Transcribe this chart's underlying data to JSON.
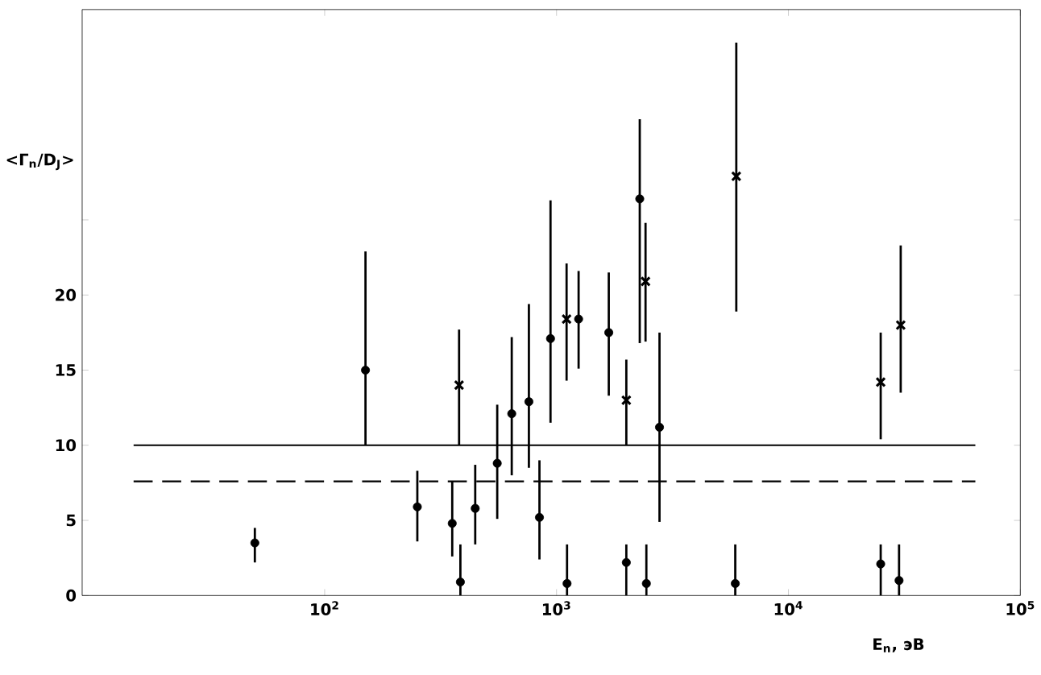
{
  "chart_data": {
    "type": "scatter",
    "xlabel": "E$_{n}$, эВ",
    "ylabel": "<Γ$_{n}$/D$_{J}$>",
    "log": "x",
    "xlim": [
      9,
      100000
    ],
    "ylim": [
      0,
      39
    ],
    "xticks": [
      {
        "value": 100,
        "label": "10$^{2}$"
      },
      {
        "value": 1000,
        "label": "10$^{3}$"
      },
      {
        "value": 10000,
        "label": "10$^{4}$"
      },
      {
        "value": 100000,
        "label": "10$^{5}$"
      }
    ],
    "yticks": [
      0,
      5,
      10,
      15,
      20,
      {
        "value": 25,
        "label": null
      }
    ],
    "grid": false,
    "series": [
      {
        "marker": "circle",
        "color": "#000000",
        "x": [
          50,
          150,
          251,
          355,
          385,
          446,
          555,
          641,
          760,
          844,
          942,
          1245,
          1680,
          2285,
          2780,
          1110,
          2440,
          5900,
          30000,
          2000,
          25000
        ],
        "values": [
          3.5,
          15,
          5.9,
          4.8,
          0.9,
          5.8,
          8.8,
          12.1,
          12.9,
          5.2,
          17.1,
          18.4,
          17.5,
          26.4,
          11.2,
          0.8,
          0.8,
          0.8,
          1.0,
          2.2,
          2.1
        ],
        "errors": [
          [
            2.2,
            4.5
          ],
          [
            10,
            22.9
          ],
          [
            3.6,
            8.3
          ],
          [
            2.6,
            7.6
          ],
          [
            0,
            3.4
          ],
          [
            3.4,
            8.7
          ],
          [
            5.1,
            12.7
          ],
          [
            8.0,
            17.2
          ],
          [
            8.5,
            19.4
          ],
          [
            2.4,
            9.0
          ],
          [
            11.5,
            26.3
          ],
          [
            15.1,
            21.6
          ],
          [
            13.3,
            21.5
          ],
          [
            16.8,
            31.7
          ],
          [
            4.9,
            17.5
          ],
          [
            0,
            3.4
          ],
          [
            0,
            3.4
          ],
          [
            0,
            3.4
          ],
          [
            0,
            3.4
          ],
          [
            0,
            3.4
          ],
          [
            0,
            3.4
          ]
        ]
      },
      {
        "marker": "cross",
        "color": "#000000",
        "x": [
          380,
          1105,
          2000,
          2420,
          5960,
          25000,
          30500
        ],
        "values": [
          14,
          18.4,
          13,
          20.9,
          27.9,
          14.2,
          18
        ],
        "errors": [
          [
            10,
            17.7
          ],
          [
            14.3,
            22.1
          ],
          [
            10,
            15.7
          ],
          [
            16.9,
            24.8
          ],
          [
            18.9,
            36.8
          ],
          [
            10.4,
            17.5
          ],
          [
            13.5,
            23.3
          ]
        ]
      },
      {
        "type": "line",
        "line_style": "solid",
        "marker": "none",
        "color": "#000000",
        "x": [
          15,
          64000
        ],
        "values": [
          10,
          10
        ]
      },
      {
        "type": "line",
        "line_style": "dashed",
        "marker": "none",
        "color": "#000000",
        "x": [
          15,
          64000
        ],
        "values": [
          7.6,
          7.6
        ]
      }
    ]
  }
}
